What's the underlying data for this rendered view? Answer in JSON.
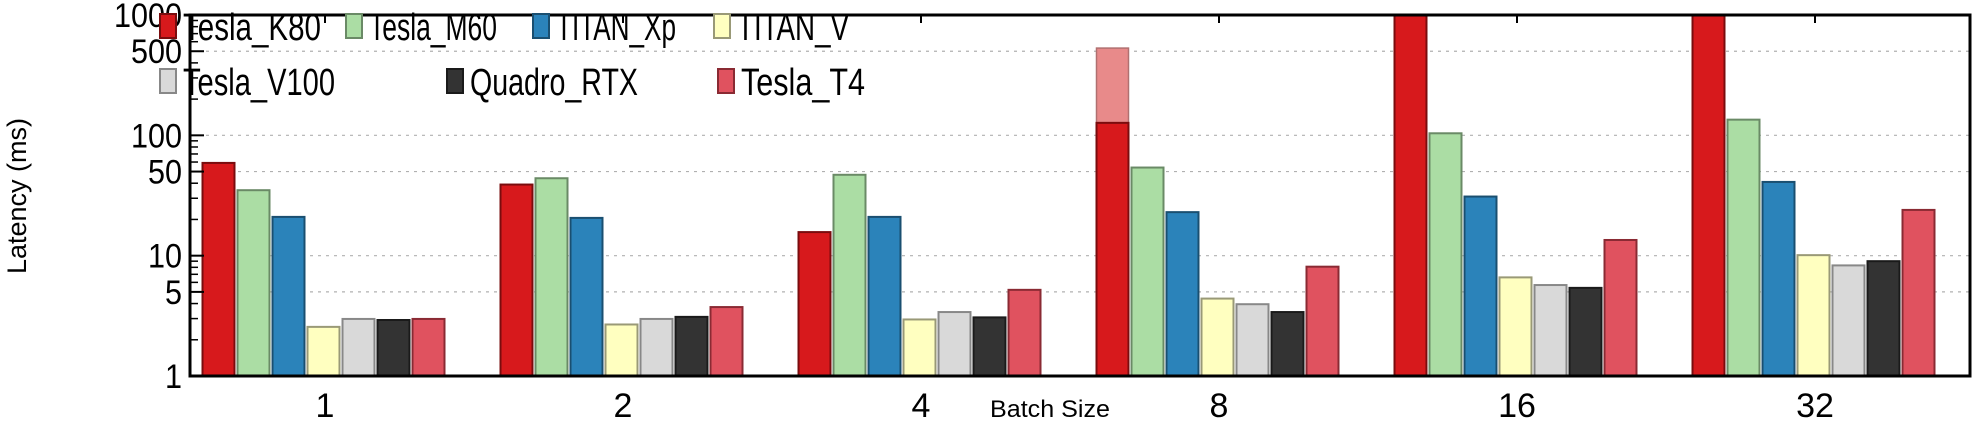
{
  "chart_data": {
    "type": "bar",
    "title": "",
    "xlabel": "Batch Size",
    "ylabel": "Latency (ms)",
    "yscale": "log",
    "ylim": [
      1,
      1000
    ],
    "yticks": [
      "1",
      "5",
      "10",
      "50",
      "100",
      "500",
      "1000"
    ],
    "ytick_values": [
      1,
      5,
      10,
      50,
      100,
      500,
      1000
    ],
    "categories": [
      "1",
      "2",
      "4",
      "8",
      "16",
      "32"
    ],
    "legend_position": "top-left",
    "grid": true,
    "series": [
      {
        "name": "Tesla_K80",
        "color": "#d7191c",
        "stroke": "#7a0c0e",
        "values": [
          59,
          39,
          15.7,
          127,
          1000,
          1000
        ]
      },
      {
        "name": "Tesla_M60",
        "color": "#abdda4",
        "stroke": "#6a8a66",
        "values": [
          35,
          44,
          47,
          54,
          104,
          135
        ]
      },
      {
        "name": "TITAN_Xp",
        "color": "#2b83ba",
        "stroke": "#1a4f70",
        "values": [
          21,
          20.6,
          21,
          23,
          31,
          41
        ]
      },
      {
        "name": "TITAN_V",
        "color": "#ffffc0",
        "stroke": "#999977",
        "values": [
          2.56,
          2.68,
          2.95,
          4.4,
          6.6,
          10.1
        ]
      },
      {
        "name": "Tesla_V100",
        "color": "#d9d9d9",
        "stroke": "#888888",
        "values": [
          2.98,
          2.98,
          3.4,
          3.95,
          5.7,
          8.3
        ]
      },
      {
        "name": "Quadro_RTX",
        "color": "#333333",
        "stroke": "#1a1a1a",
        "values": [
          2.92,
          3.1,
          3.07,
          3.4,
          5.4,
          9.0
        ]
      },
      {
        "name": "Tesla_T4",
        "color": "#e0525f",
        "stroke": "#8a2a33",
        "values": [
          2.98,
          3.74,
          5.2,
          8.1,
          13.5,
          24
        ]
      }
    ],
    "k80_batch8_overlay": {
      "value": 531,
      "color": "#e88a8a"
    }
  }
}
